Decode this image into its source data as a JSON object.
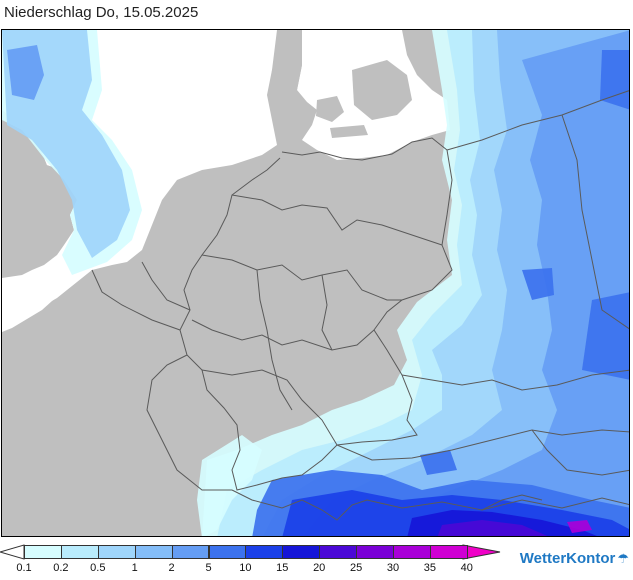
{
  "title": "Niederschlag Do, 15.05.2025",
  "brand": "WetterKontor",
  "icons": {
    "brand": "raindrop-icon",
    "legend_left_end": "arrow-left-icon",
    "legend_right_end": "arrow-right-icon"
  },
  "colors": {
    "land": "#bfbfbf",
    "water": "#ffffff",
    "border": "#5a5a5a",
    "brand": "#1f79c4"
  },
  "legend": {
    "unit_note": "",
    "classes": [
      {
        "label": "0.1",
        "color": "#d6fdff"
      },
      {
        "label": "0.2",
        "color": "#b9ecfd"
      },
      {
        "label": "0.5",
        "color": "#9fd5fb"
      },
      {
        "label": "1",
        "color": "#84bdf8"
      },
      {
        "label": "2",
        "color": "#659df4"
      },
      {
        "label": "5",
        "color": "#3c72ee"
      },
      {
        "label": "10",
        "color": "#1b40e8"
      },
      {
        "label": "15",
        "color": "#1616d8"
      },
      {
        "label": "20",
        "color": "#4b08d6"
      },
      {
        "label": "25",
        "color": "#7a00d6"
      },
      {
        "label": "30",
        "color": "#a900d8"
      },
      {
        "label": "35",
        "color": "#d000d4"
      },
      {
        "label": "40",
        "color": "#f000c8"
      }
    ]
  }
}
